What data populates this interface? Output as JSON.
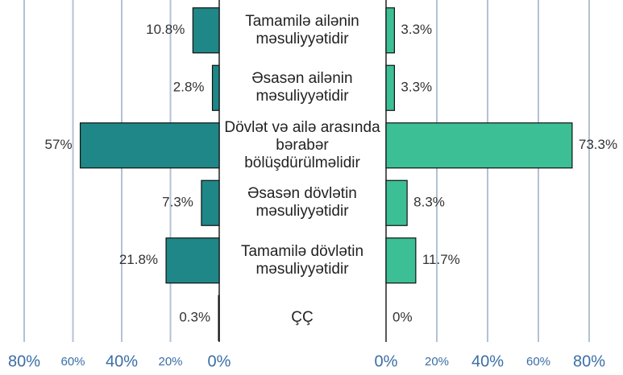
{
  "chart_data": {
    "type": "butterfly_bar",
    "categories": [
      "Tamamilə ailənin məsuliyyətidir",
      "Əsasən ailənin məsuliyyətidir",
      "Dövlət və ailə arasında bərabər bölüşdürülməlidir",
      "Əsasən dövlətin məsuliyyətidir",
      "Tamamilə dövlətin məsuliyyətidir",
      "ÇÇ"
    ],
    "series": [
      {
        "color": "#1f8787",
        "values": [
          10.8,
          2.8,
          57,
          7.3,
          21.8,
          0.3
        ],
        "value_labels": [
          "10.8%",
          "2.8%",
          "57%",
          "7.3%",
          "21.8%",
          "0.3%"
        ]
      },
      {
        "color": "#3cbf95",
        "values": [
          3.3,
          3.3,
          73.3,
          8.3,
          11.7,
          0
        ],
        "value_labels": [
          "3.3%",
          "3.3%",
          "73.3%",
          "8.3%",
          "11.7%",
          "0%"
        ]
      }
    ],
    "xlim": [
      0,
      80
    ],
    "xticks": [
      {
        "value": 0,
        "label": "0%"
      },
      {
        "value": 20,
        "label": "20%"
      },
      {
        "value": 40,
        "label": "40%"
      },
      {
        "value": 60,
        "label": "60%"
      },
      {
        "value": 80,
        "label": "80%"
      }
    ],
    "grid": true
  }
}
